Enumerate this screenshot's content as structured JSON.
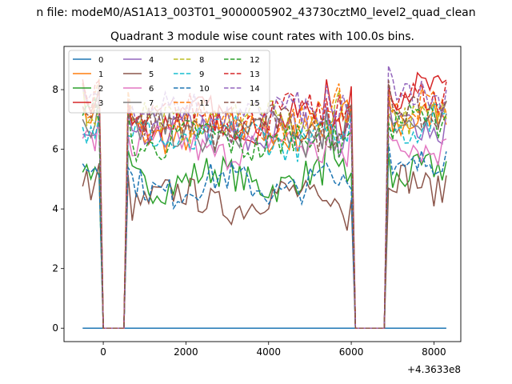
{
  "chart_data": {
    "type": "line",
    "suptitle": "n file: modeM0/AS1A13_003T01_9000005902_43730cztM0_level2_quad_clean",
    "title": "Quadrant 3 module wise count rates with 100.0s bins.",
    "xlabel": "",
    "ylabel": "",
    "x_offset_label": "+4.3633e8",
    "xlim": [
      -950,
      8650
    ],
    "ylim": [
      -0.45,
      9.45
    ],
    "xticks": [
      0,
      2000,
      4000,
      6000,
      8000
    ],
    "yticks": [
      0,
      2,
      4,
      6,
      8
    ],
    "xtick_labels": [
      "0",
      "2000",
      "4000",
      "6000",
      "8000"
    ],
    "ytick_labels": [
      "0",
      "2",
      "4",
      "6",
      "8"
    ],
    "grid": false,
    "legend_position": "top-left",
    "legend_columns": 4,
    "segments": [
      [
        -500,
        -100
      ],
      [
        0,
        500
      ],
      [
        600,
        6000
      ],
      [
        6100,
        6800
      ],
      [
        6900,
        8300
      ]
    ],
    "series": [
      {
        "name": "0",
        "color": "#1f77b4",
        "dash": "solid",
        "profile": [
          0,
          0,
          0,
          0,
          0
        ]
      },
      {
        "name": "1",
        "color": "#ff7f0e",
        "dash": "solid",
        "profile": [
          7.2,
          0,
          6.6,
          0,
          7.0
        ]
      },
      {
        "name": "2",
        "color": "#2ca02c",
        "dash": "solid",
        "profile": [
          5.2,
          0,
          5.0,
          0,
          5.1
        ]
      },
      {
        "name": "3",
        "color": "#d62728",
        "dash": "solid",
        "profile": [
          7.3,
          0,
          7.0,
          0,
          7.8
        ]
      },
      {
        "name": "4",
        "color": "#9467bd",
        "dash": "solid",
        "profile": [
          6.2,
          0,
          6.5,
          0,
          6.6
        ]
      },
      {
        "name": "5",
        "color": "#8c564b",
        "dash": "solid",
        "profile": [
          4.7,
          0,
          4.3,
          0,
          4.8
        ]
      },
      {
        "name": "6",
        "color": "#e377c2",
        "dash": "solid",
        "profile": [
          6.4,
          0,
          6.1,
          0,
          6.2
        ]
      },
      {
        "name": "7",
        "color": "#7f7f7f",
        "dash": "solid",
        "profile": [
          7.0,
          0,
          6.5,
          0,
          7.0
        ]
      },
      {
        "name": "8",
        "color": "#bcbd22",
        "dash": "dashed",
        "profile": [
          7.6,
          0,
          7.0,
          0,
          7.3
        ]
      },
      {
        "name": "9",
        "color": "#17becf",
        "dash": "dashed",
        "profile": [
          6.9,
          0,
          6.4,
          0,
          6.9
        ]
      },
      {
        "name": "10",
        "color": "#1f77b4",
        "dash": "dashed",
        "profile": [
          5.4,
          0,
          4.8,
          0,
          5.4
        ]
      },
      {
        "name": "11",
        "color": "#ff7f0e",
        "dash": "dashed",
        "profile": [
          7.4,
          0,
          6.9,
          0,
          7.3
        ]
      },
      {
        "name": "12",
        "color": "#2ca02c",
        "dash": "dashed",
        "profile": [
          6.9,
          0,
          6.3,
          0,
          6.8
        ]
      },
      {
        "name": "13",
        "color": "#d62728",
        "dash": "dashed",
        "profile": [
          7.5,
          0,
          7.1,
          0,
          7.6
        ]
      },
      {
        "name": "14",
        "color": "#9467bd",
        "dash": "dashed",
        "profile": [
          7.9,
          0,
          7.2,
          0,
          7.9
        ]
      },
      {
        "name": "15",
        "color": "#8c564b",
        "dash": "dashed",
        "profile": [
          7.2,
          0,
          6.7,
          0,
          7.3
        ]
      }
    ]
  }
}
